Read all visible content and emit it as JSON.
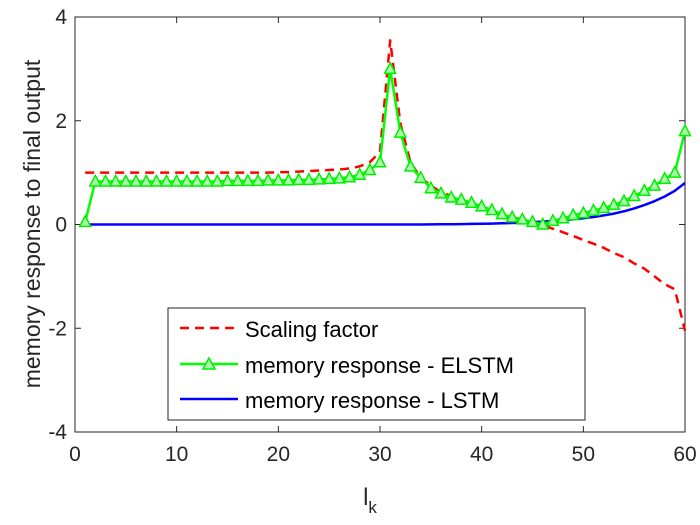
{
  "chart_data": {
    "type": "line",
    "title": "",
    "xlabel": "l",
    "xlabel_subscript": "k",
    "ylabel": "memory response to final output",
    "xlim": [
      0,
      60
    ],
    "ylim": [
      -4,
      4
    ],
    "xticks": [
      0,
      10,
      20,
      30,
      40,
      50,
      60
    ],
    "yticks": [
      -4,
      -2,
      0,
      2,
      4
    ],
    "grid": false,
    "legend_position": "bottom-center",
    "series": [
      {
        "name": "Scaling factor",
        "color": "#ff0000",
        "style": "dashed",
        "marker": "none",
        "x": [
          1,
          2,
          3,
          4,
          5,
          6,
          7,
          8,
          9,
          10,
          11,
          12,
          13,
          14,
          15,
          16,
          17,
          18,
          19,
          20,
          21,
          22,
          23,
          24,
          25,
          26,
          27,
          28,
          29,
          30,
          31,
          32,
          33,
          34,
          35,
          36,
          37,
          38,
          39,
          40,
          41,
          42,
          43,
          44,
          45,
          46,
          47,
          48,
          49,
          50,
          51,
          52,
          53,
          54,
          55,
          56,
          57,
          58,
          59,
          60
        ],
        "values": [
          1.0,
          1.0,
          1.0,
          1.0,
          1.0,
          1.0,
          1.0,
          1.0,
          1.0,
          1.0,
          1.0,
          1.0,
          1.0,
          1.0,
          1.0,
          1.0,
          1.0,
          1.0,
          1.0,
          1.01,
          1.01,
          1.02,
          1.03,
          1.04,
          1.05,
          1.06,
          1.08,
          1.12,
          1.2,
          1.4,
          3.55,
          1.95,
          1.2,
          0.9,
          0.75,
          0.62,
          0.55,
          0.45,
          0.38,
          0.32,
          0.25,
          0.18,
          0.14,
          0.1,
          0.05,
          -0.02,
          -0.08,
          -0.15,
          -0.22,
          -0.3,
          -0.37,
          -0.45,
          -0.55,
          -0.63,
          -0.75,
          -0.85,
          -1.0,
          -1.15,
          -1.25,
          -2.05
        ]
      },
      {
        "name": "memory response - ELSTM",
        "color": "#00ff00",
        "style": "solid",
        "marker": "triangle",
        "x": [
          1,
          2,
          3,
          4,
          5,
          6,
          7,
          8,
          9,
          10,
          11,
          12,
          13,
          14,
          15,
          16,
          17,
          18,
          19,
          20,
          21,
          22,
          23,
          24,
          25,
          26,
          27,
          28,
          29,
          30,
          31,
          32,
          33,
          34,
          35,
          36,
          37,
          38,
          39,
          40,
          41,
          42,
          43,
          44,
          45,
          46,
          47,
          48,
          49,
          50,
          51,
          52,
          53,
          54,
          55,
          56,
          57,
          58,
          59,
          60
        ],
        "values": [
          0.05,
          0.83,
          0.83,
          0.83,
          0.83,
          0.83,
          0.83,
          0.83,
          0.83,
          0.83,
          0.83,
          0.83,
          0.83,
          0.83,
          0.84,
          0.84,
          0.84,
          0.84,
          0.85,
          0.85,
          0.85,
          0.86,
          0.86,
          0.87,
          0.88,
          0.89,
          0.91,
          0.96,
          1.05,
          1.2,
          3.0,
          1.77,
          1.12,
          0.9,
          0.7,
          0.6,
          0.52,
          0.48,
          0.42,
          0.35,
          0.28,
          0.2,
          0.14,
          0.1,
          0.05,
          0.0,
          0.07,
          0.12,
          0.18,
          0.22,
          0.27,
          0.32,
          0.38,
          0.45,
          0.55,
          0.65,
          0.75,
          0.88,
          1.0,
          1.8
        ]
      },
      {
        "name": "memory response - LSTM",
        "color": "#0000ff",
        "style": "solid",
        "marker": "none",
        "x": [
          1,
          2,
          3,
          4,
          5,
          6,
          7,
          8,
          9,
          10,
          11,
          12,
          13,
          14,
          15,
          16,
          17,
          18,
          19,
          20,
          21,
          22,
          23,
          24,
          25,
          26,
          27,
          28,
          29,
          30,
          31,
          32,
          33,
          34,
          35,
          36,
          37,
          38,
          39,
          40,
          41,
          42,
          43,
          44,
          45,
          46,
          47,
          48,
          49,
          50,
          51,
          52,
          53,
          54,
          55,
          56,
          57,
          58,
          59,
          60
        ],
        "values": [
          0.0,
          0.0,
          0.0,
          0.0,
          0.0,
          0.0,
          0.0,
          0.0,
          0.0,
          0.0,
          0.0,
          0.0,
          0.0,
          0.0,
          0.0,
          0.0,
          0.0,
          0.0,
          0.0,
          0.0,
          0.0,
          0.0,
          0.0,
          0.0,
          0.0,
          0.0,
          0.0,
          0.0,
          0.0,
          0.0,
          0.0,
          0.0,
          0.0,
          0.0,
          0.002,
          0.004,
          0.006,
          0.008,
          0.011,
          0.014,
          0.018,
          0.023,
          0.029,
          0.036,
          0.045,
          0.055,
          0.067,
          0.082,
          0.1,
          0.12,
          0.145,
          0.175,
          0.21,
          0.255,
          0.31,
          0.375,
          0.45,
          0.54,
          0.65,
          0.8
        ]
      }
    ]
  }
}
